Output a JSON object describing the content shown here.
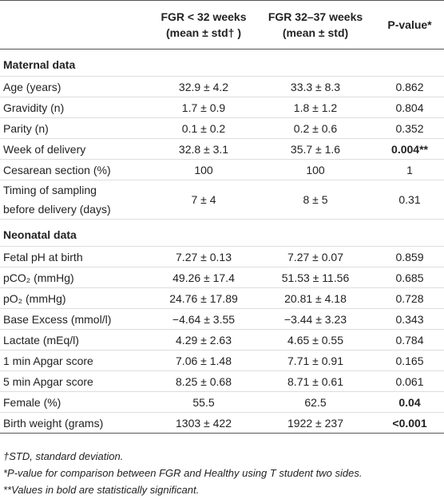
{
  "table": {
    "header": {
      "label": "",
      "columns": [
        [
          "FGR < 32 weeks",
          "(mean ± std† )"
        ],
        [
          "FGR 32–37 weeks",
          "(mean ± std)"
        ],
        [
          "P-value*"
        ]
      ]
    },
    "sections": [
      {
        "title": "Maternal data",
        "rows": [
          {
            "label": [
              "Age (years)"
            ],
            "values": [
              "32.9 ± 4.2",
              "33.3 ± 8.3",
              "0.862"
            ]
          },
          {
            "label": [
              "Gravidity (n)"
            ],
            "values": [
              "1.7 ± 0.9",
              "1.8 ± 1.2",
              "0.804"
            ]
          },
          {
            "label": [
              "Parity (n)"
            ],
            "values": [
              "0.1 ± 0.2",
              "0.2 ± 0.6",
              "0.352"
            ]
          },
          {
            "label": [
              "Week of delivery"
            ],
            "values": [
              "32.8 ± 3.1",
              "35.7 ± 1.6",
              "0.004**"
            ],
            "bold": true
          },
          {
            "label": [
              "Cesarean section (%)"
            ],
            "values": [
              "100",
              "100",
              "1"
            ]
          },
          {
            "label": [
              "Timing of sampling",
              "before delivery (days)"
            ],
            "values": [
              "7 ± 4",
              "8 ± 5",
              "0.31"
            ]
          }
        ]
      },
      {
        "title": "Neonatal data",
        "rows": [
          {
            "label": [
              "Fetal pH at birth"
            ],
            "values": [
              "7.27 ± 0.13",
              "7.27 ± 0.07",
              "0.859"
            ]
          },
          {
            "label": [
              "pCO₂ (mmHg)"
            ],
            "values": [
              "49.26 ± 17.4",
              "51.53 ± 11.56",
              "0.685"
            ]
          },
          {
            "label": [
              "pO₂ (mmHg)"
            ],
            "values": [
              "24.76 ± 17.89",
              "20.81 ± 4.18",
              "0.728"
            ]
          },
          {
            "label": [
              "Base Excess (mmol/l)"
            ],
            "values": [
              "−4.64 ± 3.55",
              "−3.44 ± 3.23",
              "0.343"
            ]
          },
          {
            "label": [
              "Lactate (mEq/l)"
            ],
            "values": [
              "4.29 ± 2.63",
              "4.65 ± 0.55",
              "0.784"
            ]
          },
          {
            "label": [
              "1 min Apgar score"
            ],
            "values": [
              "7.06 ± 1.48",
              "7.71 ± 0.91",
              "0.165"
            ]
          },
          {
            "label": [
              "5 min Apgar score"
            ],
            "values": [
              "8.25 ± 0.68",
              "8.71 ± 0.61",
              "0.061"
            ]
          },
          {
            "label": [
              "Female (%)"
            ],
            "values": [
              "55.5",
              "62.5",
              "0.04"
            ],
            "bold": true
          },
          {
            "label": [
              "Birth weight (grams)"
            ],
            "values": [
              "1303 ± 422",
              "1922 ± 237",
              "<0.001"
            ],
            "bold": true
          }
        ]
      }
    ],
    "footnotes": [
      "†STD, standard deviation.",
      "*P-value for comparison between FGR and Healthy using T student two sides.",
      "**Values in bold are statistically significant."
    ]
  }
}
